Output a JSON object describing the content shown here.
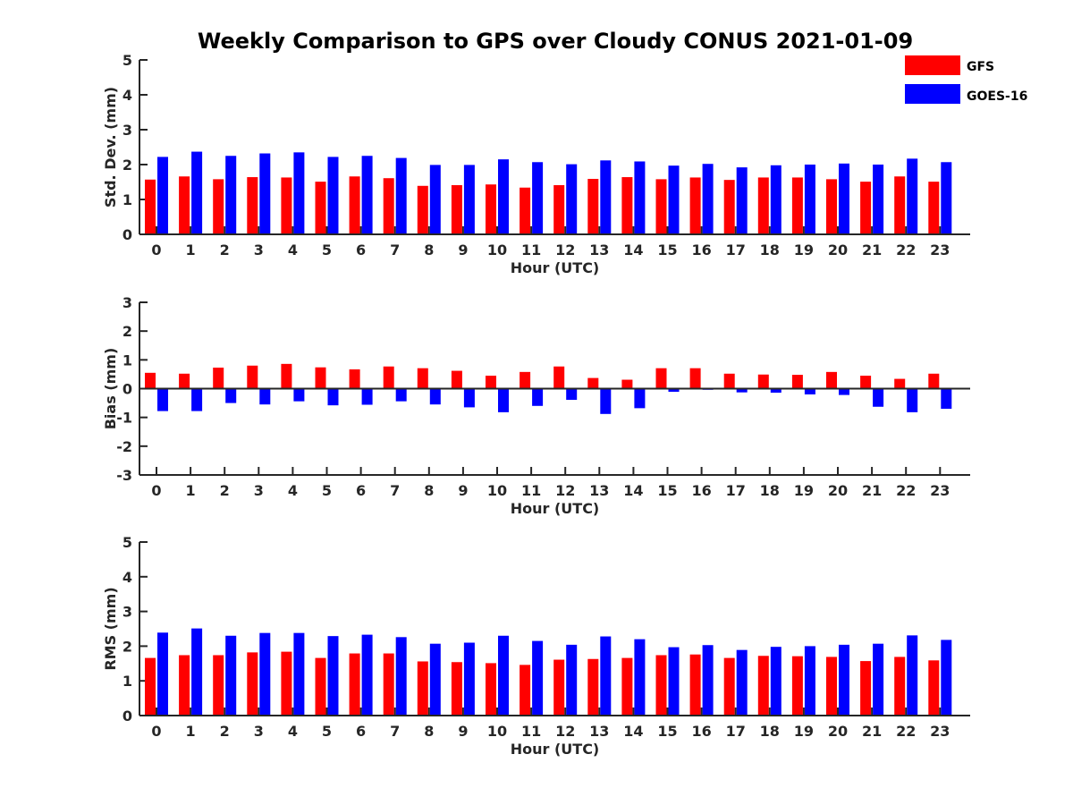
{
  "figure": {
    "title": "Weekly Comparison to GPS over Cloudy CONUS 2021-01-09"
  },
  "legend": {
    "items": [
      {
        "label": "GFS",
        "color": "#ff0000"
      },
      {
        "label": "GOES-16",
        "color": "#0000ff"
      }
    ],
    "placement": "top-right"
  },
  "chart_data": [
    {
      "type": "bar",
      "xlabel": "Hour (UTC)",
      "ylabel": "Std. Dev. (mm)",
      "ylim": [
        0,
        5
      ],
      "yticks": [
        0,
        1,
        2,
        3,
        4,
        5
      ],
      "categories": [
        "0",
        "1",
        "2",
        "3",
        "4",
        "5",
        "6",
        "7",
        "8",
        "9",
        "10",
        "11",
        "12",
        "13",
        "14",
        "15",
        "16",
        "17",
        "18",
        "19",
        "20",
        "21",
        "22",
        "23"
      ],
      "series": [
        {
          "name": "GFS",
          "color": "#ff0000",
          "values": [
            1.57,
            1.66,
            1.58,
            1.64,
            1.63,
            1.51,
            1.66,
            1.61,
            1.39,
            1.41,
            1.43,
            1.34,
            1.41,
            1.59,
            1.64,
            1.58,
            1.63,
            1.56,
            1.63,
            1.63,
            1.58,
            1.51,
            1.66,
            1.51
          ]
        },
        {
          "name": "GOES-16",
          "color": "#0000ff",
          "values": [
            2.22,
            2.37,
            2.25,
            2.32,
            2.35,
            2.22,
            2.25,
            2.19,
            1.99,
            1.99,
            2.15,
            2.07,
            2.01,
            2.12,
            2.09,
            1.97,
            2.02,
            1.92,
            1.98,
            2.0,
            2.03,
            2.0,
            2.17,
            2.07
          ]
        }
      ],
      "grid": false
    },
    {
      "type": "bar",
      "xlabel": "Hour (UTC)",
      "ylabel": "Bias (mm)",
      "ylim": [
        -3,
        3
      ],
      "yticks": [
        -3,
        -2,
        -1,
        0,
        1,
        2,
        3
      ],
      "categories": [
        "0",
        "1",
        "2",
        "3",
        "4",
        "5",
        "6",
        "7",
        "8",
        "9",
        "10",
        "11",
        "12",
        "13",
        "14",
        "15",
        "16",
        "17",
        "18",
        "19",
        "20",
        "21",
        "22",
        "23"
      ],
      "series": [
        {
          "name": "GFS",
          "color": "#ff0000",
          "values": [
            0.55,
            0.52,
            0.73,
            0.8,
            0.86,
            0.74,
            0.67,
            0.77,
            0.71,
            0.62,
            0.45,
            0.58,
            0.77,
            0.37,
            0.31,
            0.71,
            0.71,
            0.52,
            0.49,
            0.48,
            0.58,
            0.45,
            0.34,
            0.52
          ]
        },
        {
          "name": "GOES-16",
          "color": "#0000ff",
          "values": [
            -0.78,
            -0.78,
            -0.5,
            -0.55,
            -0.44,
            -0.58,
            -0.56,
            -0.44,
            -0.55,
            -0.65,
            -0.82,
            -0.6,
            -0.39,
            -0.88,
            -0.68,
            -0.11,
            -0.04,
            -0.13,
            -0.14,
            -0.2,
            -0.22,
            -0.63,
            -0.82,
            -0.7
          ]
        }
      ],
      "grid": false
    },
    {
      "type": "bar",
      "xlabel": "Hour (UTC)",
      "ylabel": "RMS (mm)",
      "ylim": [
        0,
        5
      ],
      "yticks": [
        0,
        1,
        2,
        3,
        4,
        5
      ],
      "categories": [
        "0",
        "1",
        "2",
        "3",
        "4",
        "5",
        "6",
        "7",
        "8",
        "9",
        "10",
        "11",
        "12",
        "13",
        "14",
        "15",
        "16",
        "17",
        "18",
        "19",
        "20",
        "21",
        "22",
        "23"
      ],
      "series": [
        {
          "name": "GFS",
          "color": "#ff0000",
          "values": [
            1.66,
            1.74,
            1.74,
            1.82,
            1.84,
            1.66,
            1.79,
            1.79,
            1.56,
            1.54,
            1.51,
            1.46,
            1.61,
            1.63,
            1.66,
            1.74,
            1.76,
            1.66,
            1.72,
            1.71,
            1.69,
            1.57,
            1.69,
            1.59
          ]
        },
        {
          "name": "GOES-16",
          "color": "#0000ff",
          "values": [
            2.39,
            2.51,
            2.3,
            2.38,
            2.38,
            2.29,
            2.33,
            2.26,
            2.07,
            2.1,
            2.3,
            2.15,
            2.04,
            2.28,
            2.2,
            1.97,
            2.03,
            1.89,
            1.98,
            2.0,
            2.04,
            2.07,
            2.31,
            2.18
          ]
        }
      ],
      "grid": false
    }
  ]
}
